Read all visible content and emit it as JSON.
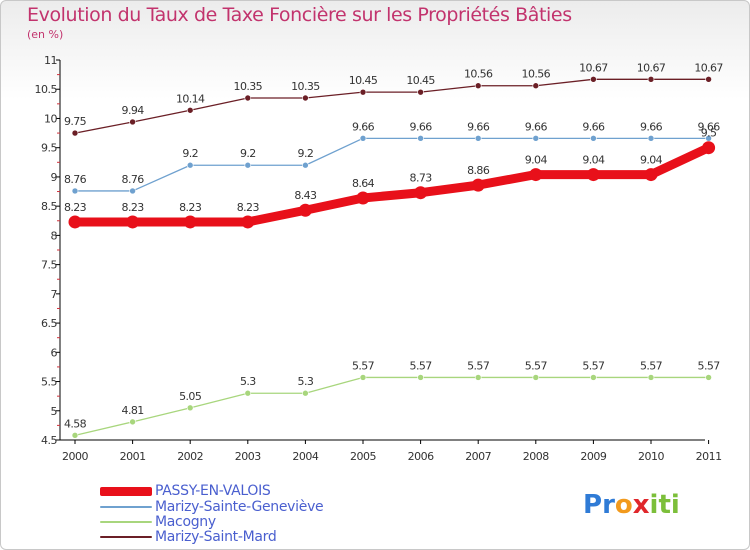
{
  "title": "Evolution du Taux de Taxe Foncière sur les Propriétés Bâties",
  "subtitle": "(en %)",
  "logo_text": "Proxiti",
  "chart_data": {
    "type": "line",
    "title": "Evolution du Taux de Taxe Foncière sur les Propriétés Bâties",
    "ylabel": "(en %)",
    "xlabel": "",
    "x": [
      "2000",
      "2001",
      "2002",
      "2003",
      "2004",
      "2005",
      "2006",
      "2007",
      "2008",
      "2009",
      "2010",
      "2011"
    ],
    "ylim": [
      4.5,
      11
    ],
    "yticks": [
      "4.5",
      "5",
      "5.5",
      "6",
      "6.5",
      "7",
      "7.5",
      "8",
      "8.5",
      "9",
      "9.5",
      "10",
      "10.5",
      "11"
    ],
    "grid": false,
    "legend_position": "bottom-left",
    "series": [
      {
        "name": "Marizy-Saint-Mard",
        "color": "#6b1f26",
        "values": [
          9.75,
          9.94,
          10.14,
          10.35,
          10.35,
          10.45,
          10.45,
          10.56,
          10.56,
          10.67,
          10.67,
          10.67
        ],
        "labels": [
          "9.75",
          "9.94",
          "10.14",
          "10.35",
          "10.35",
          "10.45",
          "10.45",
          "10.56",
          "10.56",
          "10.67",
          "10.67",
          "10.67"
        ]
      },
      {
        "name": "Marizy-Sainte-Geneviève",
        "color": "#6fa1cf",
        "values": [
          8.76,
          8.76,
          9.2,
          9.2,
          9.2,
          9.66,
          9.66,
          9.66,
          9.66,
          9.66,
          9.66,
          9.66
        ],
        "labels": [
          "8.76",
          "8.76",
          "9.2",
          "9.2",
          "9.2",
          "9.66",
          "9.66",
          "9.66",
          "9.66",
          "9.66",
          "9.66",
          "9.66"
        ]
      },
      {
        "name": "Macogny",
        "color": "#a8d67d",
        "values": [
          4.58,
          4.81,
          5.05,
          5.3,
          5.3,
          5.57,
          5.57,
          5.57,
          5.57,
          5.57,
          5.57,
          5.57
        ],
        "labels": [
          "4.58",
          "4.81",
          "5.05",
          "5.3",
          "5.3",
          "5.57",
          "5.57",
          "5.57",
          "5.57",
          "5.57",
          "5.57",
          "5.57"
        ]
      },
      {
        "name": "PASSY-EN-VALOIS",
        "color": "#e8101a",
        "values": [
          8.23,
          8.23,
          8.23,
          8.23,
          8.43,
          8.64,
          8.73,
          8.86,
          9.04,
          9.04,
          9.04,
          9.5
        ],
        "labels": [
          "8.23",
          "8.23",
          "8.23",
          "8.23",
          "8.43",
          "8.64",
          "8.73",
          "8.86",
          "9.04",
          "9.04",
          "9.04",
          "9.5"
        ]
      }
    ],
    "legend": [
      "PASSY-EN-VALOIS",
      "Marizy-Sainte-Geneviève",
      "Macogny",
      "Marizy-Saint-Mard"
    ]
  }
}
